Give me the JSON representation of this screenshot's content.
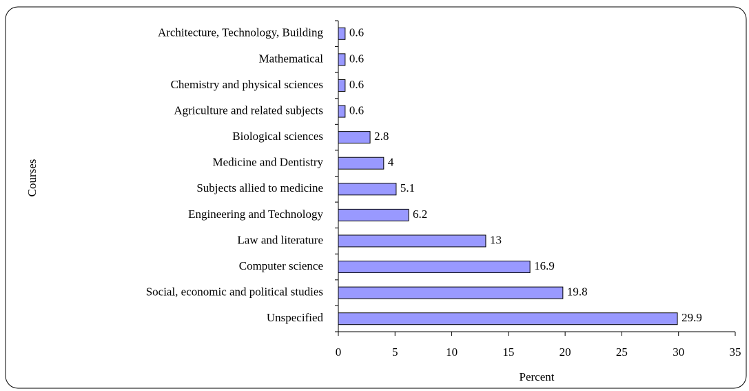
{
  "chart_data": {
    "type": "bar",
    "orientation": "horizontal",
    "categories": [
      "Architecture, Technology, Building",
      "Mathematical",
      "Chemistry and physical sciences",
      "Agriculture and related subjects",
      "Biological sciences",
      "Medicine and Dentistry",
      "Subjects allied to medicine",
      "Engineering and Technology",
      "Law and literature",
      "Computer science",
      "Social, economic and political studies",
      "Unspecified"
    ],
    "values": [
      0.6,
      0.6,
      0.6,
      0.6,
      2.8,
      4,
      5.1,
      6.2,
      13,
      16.9,
      19.8,
      29.9
    ],
    "color": "#9999ff",
    "xlabel": "Percent",
    "ylabel": "Courses",
    "xlim": [
      0,
      35
    ],
    "xticks": [
      0,
      5,
      10,
      15,
      20,
      25,
      30,
      35
    ],
    "grid": false
  }
}
